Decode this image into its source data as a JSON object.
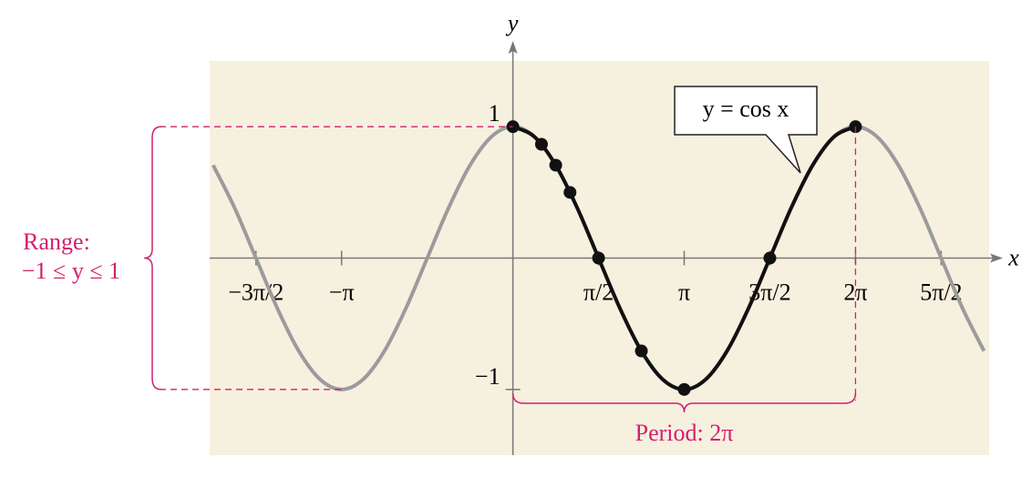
{
  "chart_data": {
    "type": "line",
    "x_label": "x",
    "y_label": "y",
    "xlim": [
      -1.77,
      2.78
    ],
    "ylim": [
      -1.5,
      1.5
    ],
    "xticks": [
      {
        "value": -1.5,
        "label": "−3π/2"
      },
      {
        "value": -1,
        "label": "−π"
      },
      {
        "value": 0.5,
        "label": "π/2"
      },
      {
        "value": 1,
        "label": "π"
      },
      {
        "value": 1.5,
        "label": "3π/2"
      },
      {
        "value": 2,
        "label": "2π"
      },
      {
        "value": 2.5,
        "label": "5π/2"
      }
    ],
    "yticks": [
      1,
      {
        "value": -1,
        "label": "−1"
      }
    ],
    "series": [
      {
        "color": "#9b9b9b",
        "x": [
          -1.75,
          -1.625,
          -1.5,
          -1.375,
          -1.25,
          -1.125,
          -1,
          -0.875,
          -0.75,
          -0.625,
          -0.5,
          -0.375,
          -0.25,
          -0.125,
          0,
          0.125,
          0.25,
          0.375,
          0.5,
          0.625,
          0.75,
          0.875,
          1,
          1.125,
          1.25,
          1.375,
          1.5,
          1.625,
          1.75,
          1.875,
          2,
          2.125,
          2.25,
          2.375,
          2.5,
          2.625,
          2.75
        ],
        "values": [
          0.707,
          0.383,
          0,
          -0.383,
          -0.707,
          -0.924,
          -1,
          -0.924,
          -0.707,
          -0.383,
          0,
          0.383,
          0.707,
          0.924,
          1,
          0.924,
          0.707,
          0.383,
          0,
          -0.383,
          -0.707,
          -0.924,
          -1,
          -0.924,
          -0.707,
          -0.383,
          0,
          0.383,
          0.707,
          0.924,
          1,
          0.924,
          0.707,
          0.383,
          0,
          -0.383,
          -0.707
        ]
      },
      {
        "color": "#111111",
        "x": [
          0,
          0.125,
          0.25,
          0.375,
          0.5,
          0.625,
          0.75,
          0.875,
          1,
          1.125,
          1.25,
          1.375,
          1.5,
          1.625,
          1.75,
          1.875,
          2
        ],
        "values": [
          1,
          0.924,
          0.707,
          0.383,
          0,
          -0.383,
          -0.707,
          -0.924,
          -1,
          -0.924,
          -0.707,
          -0.383,
          0,
          0.383,
          0.707,
          0.924,
          1
        ]
      }
    ],
    "points": {
      "color": "#111111",
      "x": [
        0,
        0.1667,
        0.25,
        0.3333,
        0.5,
        0.75,
        1,
        1.5,
        2
      ],
      "values": [
        1,
        0.866,
        0.707,
        0.5,
        0,
        -0.707,
        -1,
        0,
        1
      ]
    },
    "callout": "y = cos x",
    "range_label": [
      "Range:",
      "−1 ≤ y ≤ 1"
    ],
    "period_label": "Period: 2π",
    "background": "#f6f0df",
    "annotation_color": "#d3206f"
  }
}
